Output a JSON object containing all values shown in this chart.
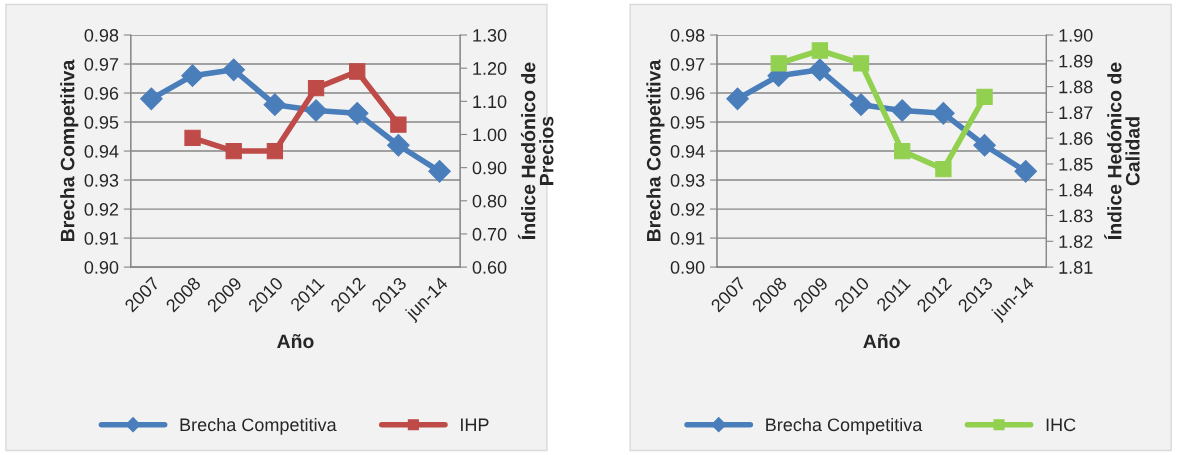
{
  "chart_data": [
    {
      "type": "line",
      "xlabel": "Año",
      "ylabel": "Brecha Competitiva",
      "y2label": "Índice Hedónico de\nPrecios",
      "categories": [
        "2007",
        "2008",
        "2009",
        "2010",
        "2011",
        "2012",
        "2013",
        "jun-14"
      ],
      "series": [
        {
          "name": "Brecha Competitiva",
          "color": "#4a7ebb",
          "marker": "diamond",
          "values": [
            0.958,
            0.966,
            0.968,
            0.956,
            0.954,
            0.953,
            0.942,
            0.933
          ]
        },
        {
          "name": "IHP",
          "color": "#be4b48",
          "marker": "square",
          "axis": "y2",
          "values": [
            null,
            0.99,
            0.95,
            0.95,
            1.14,
            1.19,
            1.03,
            null
          ]
        }
      ],
      "ylim": [
        0.9,
        0.98
      ],
      "yticks": [
        {
          "value": 0.9,
          "label": "0.90"
        },
        {
          "value": 0.91,
          "label": "0.91"
        },
        {
          "value": 0.92,
          "label": "0.92"
        },
        {
          "value": 0.93,
          "label": "0.93"
        },
        {
          "value": 0.94,
          "label": "0.94"
        },
        {
          "value": 0.95,
          "label": "0.95"
        },
        {
          "value": 0.96,
          "label": "0.96"
        },
        {
          "value": 0.97,
          "label": "0.97"
        },
        {
          "value": 0.98,
          "label": "0.98"
        }
      ],
      "y2lim": [
        0.6,
        1.3
      ],
      "y2ticks": [
        {
          "value": 0.6,
          "label": "0.60"
        },
        {
          "value": 0.7,
          "label": "0.70"
        },
        {
          "value": 0.8,
          "label": "0.80"
        },
        {
          "value": 0.9,
          "label": "0.90"
        },
        {
          "value": 1.0,
          "label": "1.00"
        },
        {
          "value": 1.1,
          "label": "1.10"
        },
        {
          "value": 1.2,
          "label": "1.20"
        },
        {
          "value": 1.3,
          "label": "1.30"
        }
      ],
      "grid": "y",
      "legend": "bottom"
    },
    {
      "type": "line",
      "xlabel": "Año",
      "ylabel": "Brecha Competitiva",
      "y2label": "Índice Hedónico de\nCalidad",
      "categories": [
        "2007",
        "2008",
        "2009",
        "2010",
        "2011",
        "2012",
        "2013",
        "jun-14"
      ],
      "series": [
        {
          "name": "Brecha Competitiva",
          "color": "#4a7ebb",
          "marker": "diamond",
          "values": [
            0.958,
            0.966,
            0.968,
            0.956,
            0.954,
            0.953,
            0.942,
            0.933
          ]
        },
        {
          "name": "IHC",
          "color": "#92d050",
          "marker": "square",
          "axis": "y2",
          "values": [
            null,
            1.889,
            1.894,
            1.889,
            1.855,
            1.848,
            1.876,
            null
          ]
        }
      ],
      "ylim": [
        0.9,
        0.98
      ],
      "yticks": [
        {
          "value": 0.9,
          "label": "0.90"
        },
        {
          "value": 0.91,
          "label": "0.91"
        },
        {
          "value": 0.92,
          "label": "0.92"
        },
        {
          "value": 0.93,
          "label": "0.93"
        },
        {
          "value": 0.94,
          "label": "0.94"
        },
        {
          "value": 0.95,
          "label": "0.95"
        },
        {
          "value": 0.96,
          "label": "0.96"
        },
        {
          "value": 0.97,
          "label": "0.97"
        },
        {
          "value": 0.98,
          "label": "0.98"
        }
      ],
      "y2lim": [
        1.81,
        1.9
      ],
      "y2ticks": [
        {
          "value": 1.81,
          "label": "1.81"
        },
        {
          "value": 1.82,
          "label": "1.82"
        },
        {
          "value": 1.83,
          "label": "1.83"
        },
        {
          "value": 1.84,
          "label": "1.84"
        },
        {
          "value": 1.85,
          "label": "1.85"
        },
        {
          "value": 1.86,
          "label": "1.86"
        },
        {
          "value": 1.87,
          "label": "1.87"
        },
        {
          "value": 1.88,
          "label": "1.88"
        },
        {
          "value": 1.89,
          "label": "1.89"
        },
        {
          "value": 1.9,
          "label": "1.90"
        }
      ],
      "grid": "y",
      "legend": "bottom"
    }
  ]
}
